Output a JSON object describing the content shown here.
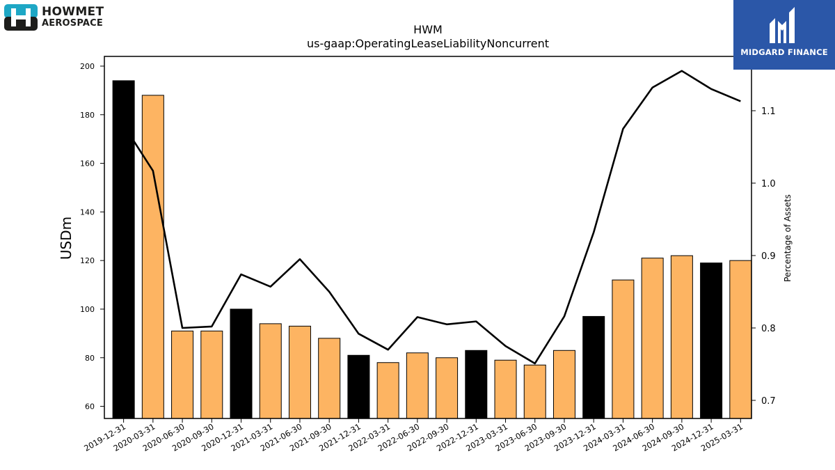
{
  "logos": {
    "left_line1": "HOWMET",
    "left_line2": "AEROSPACE",
    "right_text": "MIDGARD FINANCE"
  },
  "chart_data": {
    "type": "bar",
    "title": "HWM",
    "subtitle": "us-gaap:OperatingLeaseLiabilityNoncurrent",
    "ylabel": "USDm",
    "y2label": "Percentage of Assets",
    "categories": [
      "2019-12-31",
      "2020-03-31",
      "2020-06-30",
      "2020-09-30",
      "2020-12-31",
      "2021-03-31",
      "2021-06-30",
      "2021-09-30",
      "2021-12-31",
      "2022-03-31",
      "2022-06-30",
      "2022-09-30",
      "2022-12-31",
      "2023-03-31",
      "2023-06-30",
      "2023-09-30",
      "2023-12-31",
      "2024-03-31",
      "2024-06-30",
      "2024-09-30",
      "2024-12-31",
      "2025-03-31"
    ],
    "series": [
      {
        "type": "bar",
        "values": [
          194,
          188,
          91,
          91,
          100,
          94,
          93,
          88,
          81,
          78,
          82,
          80,
          83,
          79,
          77,
          83,
          97,
          112,
          121,
          122,
          119,
          120
        ],
        "colors": [
          "#000000",
          "#fdb462",
          "#fdb462",
          "#fdb462",
          "#000000",
          "#fdb462",
          "#fdb462",
          "#fdb462",
          "#000000",
          "#fdb462",
          "#fdb462",
          "#fdb462",
          "#000000",
          "#fdb462",
          "#fdb462",
          "#fdb462",
          "#000000",
          "#fdb462",
          "#fdb462",
          "#fdb462",
          "#000000",
          "#fdb462"
        ]
      },
      {
        "type": "line",
        "axis": "right",
        "color": "#000000",
        "values": [
          1.08,
          1.017,
          0.8,
          0.802,
          0.874,
          0.857,
          0.895,
          0.85,
          0.792,
          0.77,
          0.815,
          0.805,
          0.809,
          0.775,
          0.751,
          0.816,
          0.932,
          1.075,
          1.132,
          1.155,
          1.13,
          1.113
        ]
      }
    ],
    "ylim": [
      55,
      204
    ],
    "y2lim": [
      0.675,
      1.175
    ],
    "yticks": [
      60,
      80,
      100,
      120,
      140,
      160,
      180,
      200
    ],
    "y2ticks": [
      0.7,
      0.8,
      0.9,
      1.0,
      1.1
    ],
    "y2ticklabels": [
      "0.7",
      "0.8",
      "0.9",
      "1.0",
      "1.1"
    ],
    "grid": false,
    "legend": "none"
  }
}
